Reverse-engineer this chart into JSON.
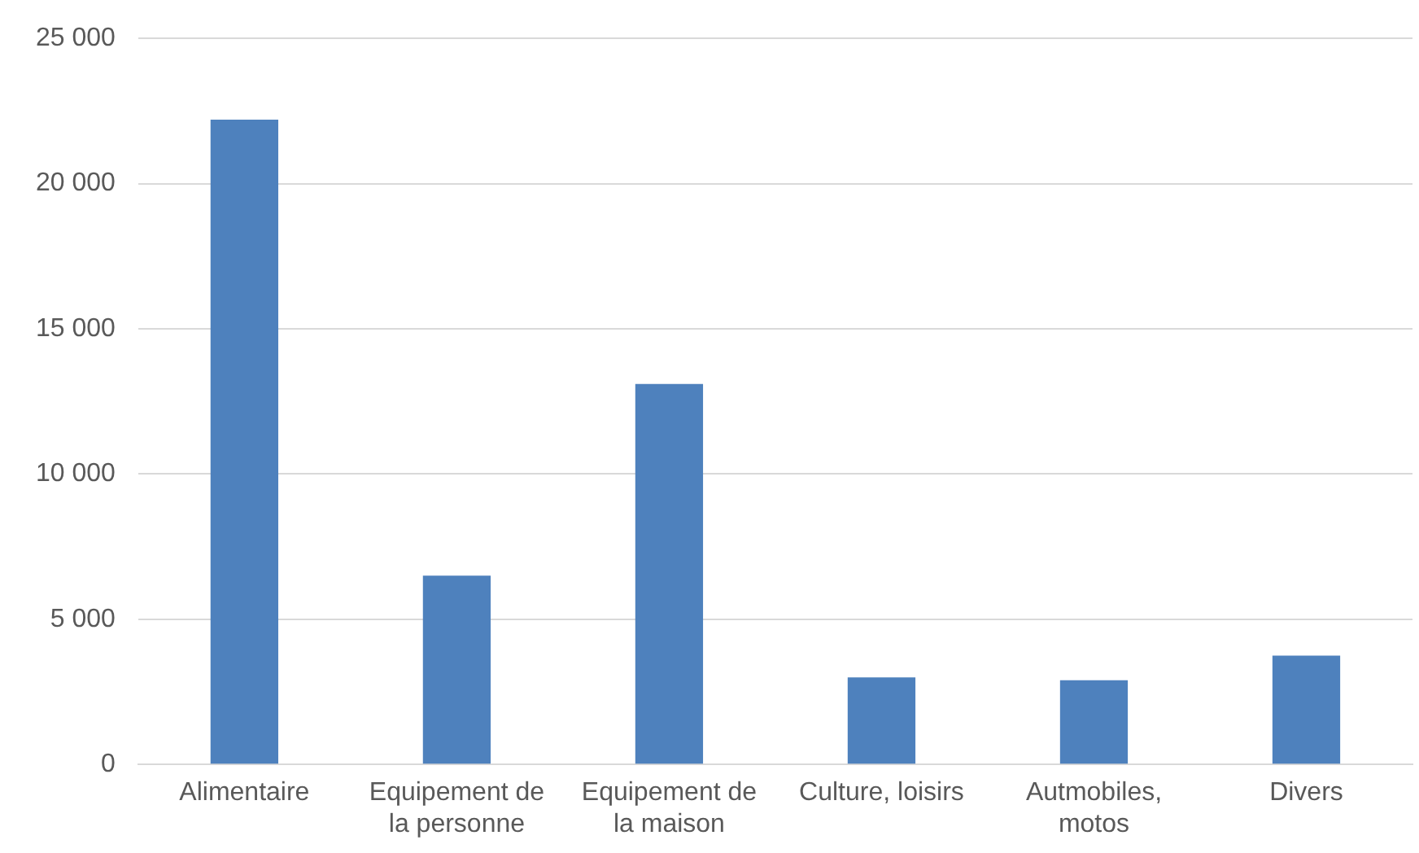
{
  "chart_data": {
    "type": "bar",
    "categories": [
      "Alimentaire",
      "Equipement de la personne",
      "Equipement de la maison",
      "Culture, loisirs",
      "Autmobiles, motos",
      "Divers"
    ],
    "values": [
      22200,
      6500,
      13100,
      3000,
      2900,
      3750
    ],
    "color": "#4e81bd",
    "ylim": [
      0,
      25000
    ],
    "yticks": [
      {
        "value": 0,
        "label": "0"
      },
      {
        "value": 5000,
        "label": "5 000"
      },
      {
        "value": 10000,
        "label": "10 000"
      },
      {
        "value": 15000,
        "label": "15 000"
      },
      {
        "value": 20000,
        "label": "20 000"
      },
      {
        "value": 25000,
        "label": "25 000"
      }
    ],
    "grid": "y",
    "legend": false
  }
}
